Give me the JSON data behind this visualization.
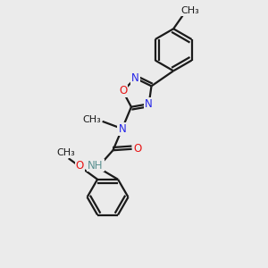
{
  "bg_color": "#ebebeb",
  "bond_color": "#1a1a1a",
  "N_color": "#2424e8",
  "O_color": "#e81414",
  "H_color": "#5a9090",
  "line_width": 1.6,
  "font_size": 8.5,
  "fig_w": 3.0,
  "fig_h": 3.0,
  "dpi": 100,
  "xlim": [
    0,
    10
  ],
  "ylim": [
    0,
    10
  ]
}
